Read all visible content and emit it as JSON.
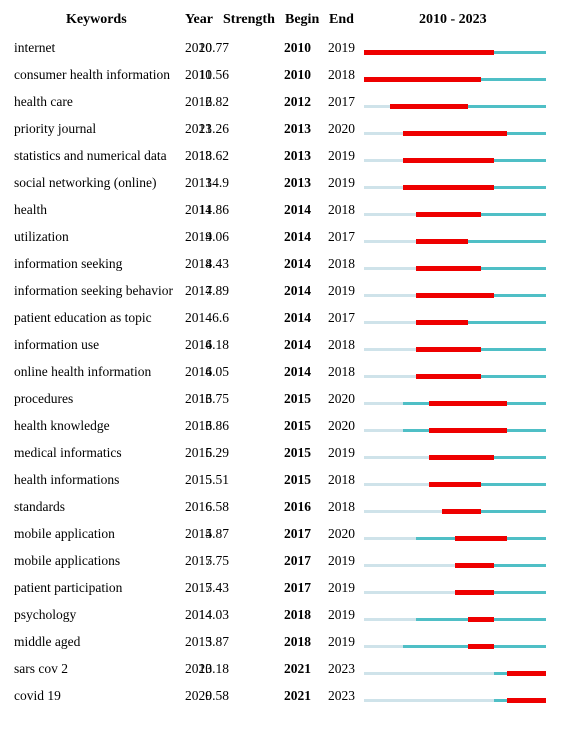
{
  "headers": {
    "keywords": "Keywords",
    "year": "Year",
    "strength": "Strength",
    "begin": "Begin",
    "end": "End",
    "range": "2010 - 2023"
  },
  "colors": {
    "burst": "#ee0000",
    "active": "#4fbfc6",
    "inactive": "#cfe3ea"
  },
  "chart_data": {
    "type": "table",
    "range_start": 2010,
    "range_end": 2023,
    "rows": [
      {
        "keyword": "internet",
        "year": "2010",
        "strength": "20.77",
        "begin": "2010",
        "end": "2019"
      },
      {
        "keyword": "consumer health information",
        "year": "2010",
        "strength": "11.56",
        "begin": "2010",
        "end": "2018"
      },
      {
        "keyword": "health care",
        "year": "2012",
        "strength": "6.82",
        "begin": "2012",
        "end": "2017"
      },
      {
        "keyword": "priority journal",
        "year": "2013",
        "strength": "21.26",
        "begin": "2013",
        "end": "2020"
      },
      {
        "keyword": "statistics and numerical data",
        "year": "2013",
        "strength": "18.62",
        "begin": "2013",
        "end": "2019"
      },
      {
        "keyword": "social networking (online)",
        "year": "2013",
        "strength": "14.9",
        "begin": "2013",
        "end": "2019"
      },
      {
        "keyword": "health",
        "year": "2014",
        "strength": "11.86",
        "begin": "2014",
        "end": "2018"
      },
      {
        "keyword": "utilization",
        "year": "2014",
        "strength": "9.06",
        "begin": "2014",
        "end": "2017"
      },
      {
        "keyword": "information seeking",
        "year": "2014",
        "strength": "8.43",
        "begin": "2014",
        "end": "2018"
      },
      {
        "keyword": "information seeking behavior",
        "year": "2014",
        "strength": "7.89",
        "begin": "2014",
        "end": "2019"
      },
      {
        "keyword": "patient education as topic",
        "year": "2014",
        "strength": "6.6",
        "begin": "2014",
        "end": "2017"
      },
      {
        "keyword": "information use",
        "year": "2014",
        "strength": "6.18",
        "begin": "2014",
        "end": "2018"
      },
      {
        "keyword": "online health information",
        "year": "2014",
        "strength": "6.05",
        "begin": "2014",
        "end": "2018"
      },
      {
        "keyword": "procedures",
        "year": "2013",
        "strength": "16.75",
        "begin": "2015",
        "end": "2020"
      },
      {
        "keyword": "health knowledge",
        "year": "2013",
        "strength": "6.86",
        "begin": "2015",
        "end": "2020"
      },
      {
        "keyword": "medical informatics",
        "year": "2015",
        "strength": "6.29",
        "begin": "2015",
        "end": "2019"
      },
      {
        "keyword": "health informations",
        "year": "2015",
        "strength": "5.51",
        "begin": "2015",
        "end": "2018"
      },
      {
        "keyword": "standards",
        "year": "2016",
        "strength": "6.58",
        "begin": "2016",
        "end": "2018"
      },
      {
        "keyword": "mobile application",
        "year": "2014",
        "strength": "5.87",
        "begin": "2017",
        "end": "2020"
      },
      {
        "keyword": "mobile applications",
        "year": "2017",
        "strength": "5.75",
        "begin": "2017",
        "end": "2019"
      },
      {
        "keyword": "patient participation",
        "year": "2017",
        "strength": "5.43",
        "begin": "2017",
        "end": "2019"
      },
      {
        "keyword": "psychology",
        "year": "2014",
        "strength": "14.03",
        "begin": "2018",
        "end": "2019"
      },
      {
        "keyword": "middle aged",
        "year": "2013",
        "strength": "5.87",
        "begin": "2018",
        "end": "2019"
      },
      {
        "keyword": "sars cov 2",
        "year": "2020",
        "strength": "13.18",
        "begin": "2021",
        "end": "2023"
      },
      {
        "keyword": "covid 19",
        "year": "2020",
        "strength": "9.58",
        "begin": "2021",
        "end": "2023"
      }
    ]
  }
}
